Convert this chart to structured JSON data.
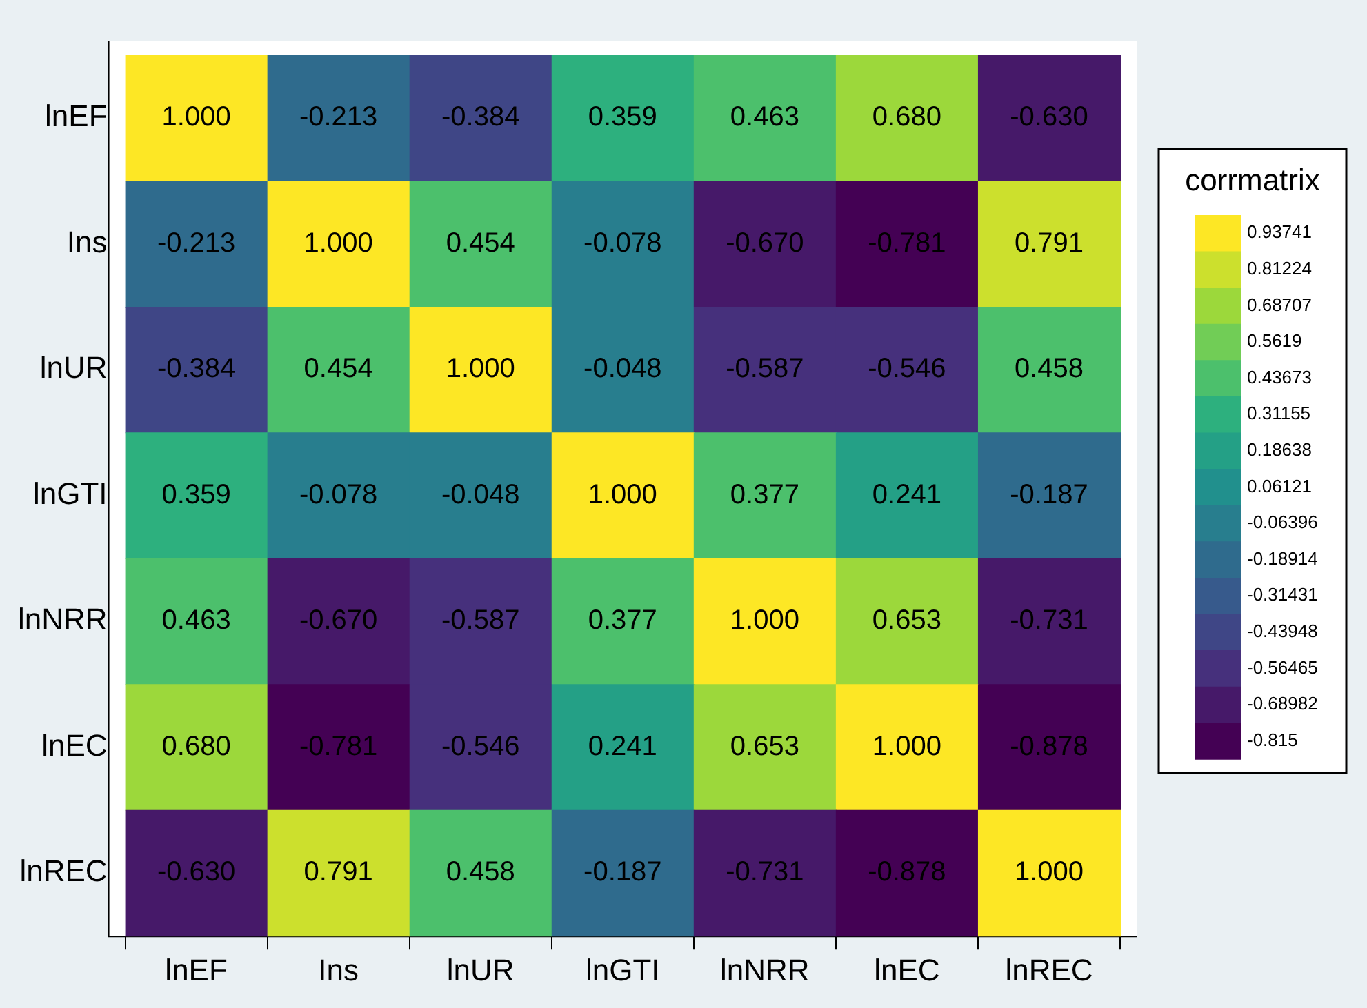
{
  "chart_data": {
    "type": "heatmap",
    "clabel": "corrmatrix",
    "categories": [
      "lnEF",
      "Ins",
      "lnUR",
      "lnGTI",
      "lnNRR",
      "lnEC",
      "lnREC"
    ],
    "y_categories": [
      "lnEF",
      "Ins",
      "lnUR",
      "lnGTI",
      "lnNRR",
      "lnEC",
      "lnREC"
    ],
    "cells": [
      [
        1.0,
        -0.213,
        -0.384,
        0.359,
        0.463,
        0.68,
        -0.63
      ],
      [
        -0.213,
        1.0,
        0.454,
        -0.078,
        -0.67,
        -0.781,
        0.791
      ],
      [
        -0.384,
        0.454,
        1.0,
        -0.048,
        -0.587,
        -0.546,
        0.458
      ],
      [
        0.359,
        -0.078,
        -0.048,
        1.0,
        0.377,
        0.241,
        -0.187
      ],
      [
        0.463,
        -0.67,
        -0.587,
        0.377,
        1.0,
        0.653,
        -0.731
      ],
      [
        0.68,
        -0.781,
        -0.546,
        0.241,
        0.653,
        1.0,
        -0.878
      ],
      [
        -0.63,
        0.791,
        0.458,
        -0.187,
        -0.731,
        -0.878,
        1.0
      ]
    ],
    "cell_labels": [
      [
        "1.000",
        "-0.213",
        "-0.384",
        "0.359",
        "0.463",
        "0.680",
        "-0.630"
      ],
      [
        "-0.213",
        "1.000",
        "0.454",
        "-0.078",
        "-0.670",
        "-0.781",
        "0.791"
      ],
      [
        "-0.384",
        "0.454",
        "1.000",
        "-0.048",
        "-0.587",
        "-0.546",
        "0.458"
      ],
      [
        "0.359",
        "-0.078",
        "-0.048",
        "1.000",
        "0.377",
        "0.241",
        "-0.187"
      ],
      [
        "0.463",
        "-0.670",
        "-0.587",
        "0.377",
        "1.000",
        "0.653",
        "-0.731"
      ],
      [
        "0.680",
        "-0.781",
        "-0.546",
        "0.241",
        "0.653",
        "1.000",
        "-0.878"
      ],
      [
        "-0.630",
        "0.791",
        "0.458",
        "-0.187",
        "-0.731",
        "-0.878",
        "1.000"
      ]
    ],
    "clim": [
      -0.878,
      1.0
    ],
    "cticks": [
      0.93741,
      0.81224,
      0.68707,
      0.5619,
      0.43673,
      0.31155,
      0.18638,
      0.06121,
      -0.06396,
      -0.18914,
      -0.31431,
      -0.43948,
      -0.56465,
      -0.68982,
      -0.815
    ]
  }
}
